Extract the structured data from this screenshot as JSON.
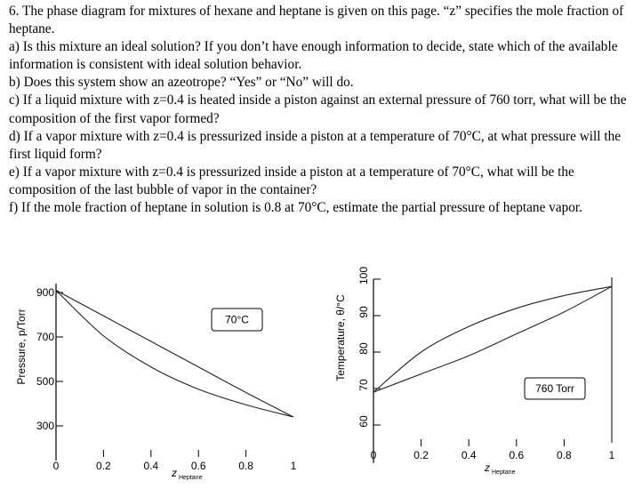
{
  "question": {
    "intro": "6. The phase diagram for mixtures of hexane and heptane is given on this page. “z” specifies the mole fraction of heptane.",
    "a": "a) Is this mixture an ideal solution? If you don’t have enough information to decide, state which of the available information is consistent with ideal solution behavior.",
    "b": "b) Does this system show an azeotrope? “Yes” or “No” will do.",
    "c": "c) If a liquid mixture with z=0.4 is heated inside a piston against an external pressure of 760 torr, what will be the composition of the first vapor formed?",
    "d": "d) If a vapor mixture with z=0.4 is pressurized inside a piston at a temperature of 70°C, at what pressure will the first liquid form?",
    "e": "e) If a vapor mixture with z=0.4 is pressurized inside a piston at a temperature of 70°C, what will be the composition of the last bubble of vapor in the container?",
    "f": "f) If the mole fraction of heptane in solution is 0.8 at 70°C, estimate the partial pressure of heptane vapor."
  },
  "chart_data": [
    {
      "type": "line",
      "box_label": "70°C",
      "ylabel": "Pressure, p/Torr",
      "xlabel_main": "z",
      "xlabel_sub": "Heptane",
      "xlim": [
        0,
        1
      ],
      "ylim": [
        200,
        960
      ],
      "xticks": [
        0,
        0.2,
        0.4,
        0.6,
        0.8,
        1
      ],
      "xtick_labels": [
        "0",
        "0.2",
        "0.4",
        "0.6",
        "0.8",
        "1"
      ],
      "yticks": [
        300,
        500,
        700,
        900
      ],
      "ytick_labels": [
        "300",
        "500",
        "700",
        "900"
      ],
      "series": [
        {
          "x": [
            0,
            0.2,
            0.4,
            0.6,
            0.8,
            1
          ],
          "values": [
            910,
            795,
            680,
            565,
            450,
            340
          ]
        },
        {
          "x": [
            0,
            0.2,
            0.4,
            0.6,
            0.8,
            1
          ],
          "values": [
            910,
            705,
            565,
            465,
            395,
            340
          ]
        }
      ]
    },
    {
      "type": "line",
      "box_label": "760 Torr",
      "ylabel": "Temperature, θ/°C",
      "xlabel_main": "z",
      "xlabel_sub": "Heptane",
      "xlim": [
        0,
        1
      ],
      "ylim": [
        53,
        100
      ],
      "xticks": [
        0,
        0.2,
        0.4,
        0.6,
        0.8,
        1
      ],
      "xtick_labels": [
        "0",
        "0.2",
        "0.4",
        "0.6",
        "0.8",
        "1"
      ],
      "yticks": [
        60,
        70,
        80,
        90,
        100
      ],
      "ytick_labels": [
        "60",
        "70",
        "80",
        "90",
        "100"
      ],
      "series": [
        {
          "x": [
            0,
            0.2,
            0.4,
            0.6,
            0.8,
            1
          ],
          "values": [
            69,
            74,
            79,
            85,
            91,
            98
          ]
        },
        {
          "x": [
            0,
            0.2,
            0.4,
            0.6,
            0.8,
            1
          ],
          "values": [
            69,
            80,
            87,
            92,
            95.5,
            98
          ]
        }
      ]
    }
  ]
}
